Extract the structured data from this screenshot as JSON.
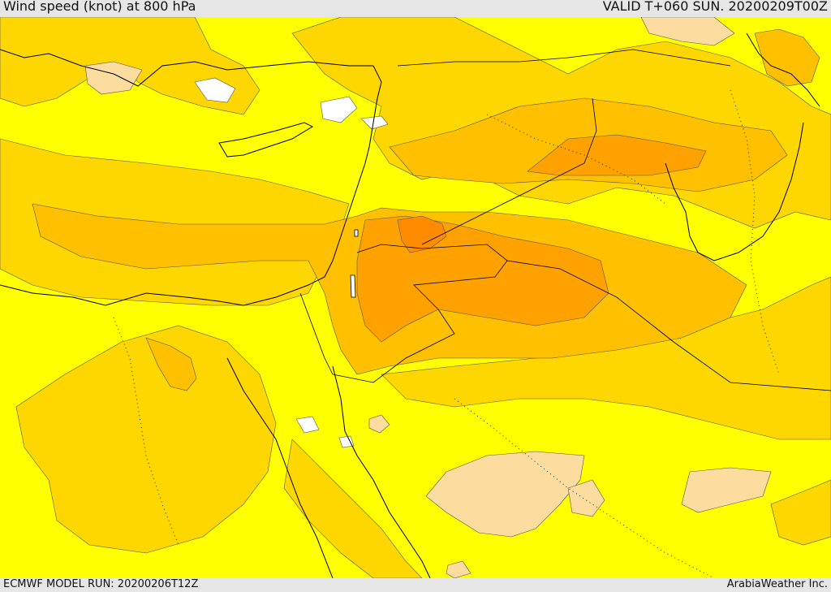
{
  "header": {
    "title": "Wind speed (knot) at 800 hPa",
    "valid": "VALID T+060 SUN. 20200209T00Z"
  },
  "footer": {
    "model_run": "ECMWF MODEL RUN: 20200206T12Z",
    "credit": "ArabiaWeather Inc."
  },
  "colors": {
    "calm": "#ffffff",
    "pale": "#fddca0",
    "yellow": "#ffff00",
    "gold": "#ffd700",
    "amber": "#ffc000",
    "orange": "#ffa200",
    "deep_orange": "#ff8c00",
    "outline": "#000000"
  }
}
